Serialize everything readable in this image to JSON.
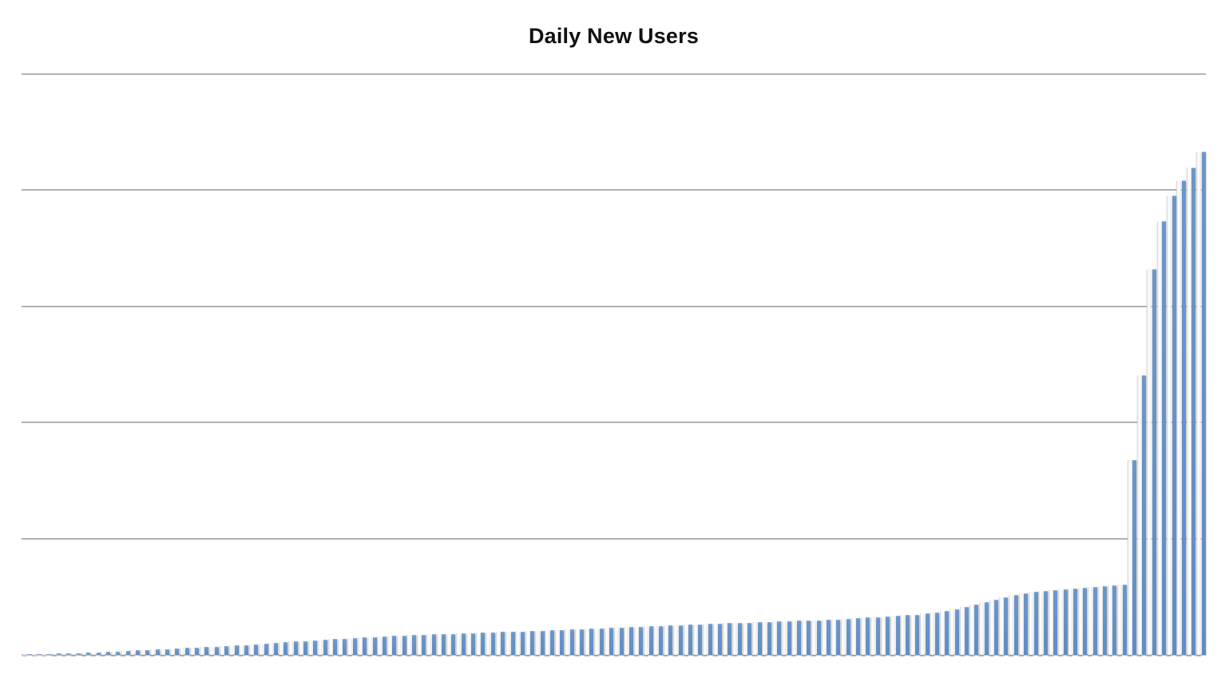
{
  "title": "Daily New Users",
  "colors": {
    "bar": "#5f8dc5",
    "bar_top_highlight": "#91b3dc",
    "bar_ghost_shadow": "#d6d6d6",
    "gridline": "#9a9a9a",
    "background": "#ffffff",
    "title_text": "#111111"
  },
  "chart_data": {
    "type": "bar",
    "title": "Daily New Users",
    "xlabel": "",
    "ylabel": "",
    "legend": "none",
    "grid": "horizontal",
    "x_tick_labels_visible": false,
    "y_tick_labels_visible": false,
    "ylim": [
      0,
      5000
    ],
    "gridline_interval": 1000,
    "n_bars": 120,
    "values": [
      7,
      8,
      10,
      12,
      14,
      17,
      20,
      23,
      27,
      30,
      34,
      38,
      42,
      46,
      50,
      55,
      59,
      63,
      68,
      72,
      76,
      81,
      86,
      92,
      97,
      103,
      108,
      114,
      120,
      126,
      131,
      136,
      141,
      145,
      150,
      154,
      158,
      162,
      166,
      169,
      172,
      176,
      179,
      182,
      185,
      188,
      191,
      194,
      197,
      199,
      200,
      203,
      207,
      210,
      214,
      217,
      221,
      224,
      228,
      231,
      234,
      238,
      241,
      245,
      248,
      252,
      256,
      259,
      263,
      266,
      269,
      272,
      275,
      278,
      281,
      284,
      287,
      290,
      293,
      295,
      297,
      301,
      305,
      310,
      315,
      320,
      325,
      330,
      336,
      341,
      345,
      355,
      366,
      378,
      390,
      414,
      434,
      456,
      478,
      498,
      517,
      528,
      540,
      551,
      560,
      566,
      572,
      578,
      584,
      590,
      597,
      607,
      1676,
      2407,
      3324,
      3738,
      3952,
      4083,
      4193,
      4331
    ]
  }
}
